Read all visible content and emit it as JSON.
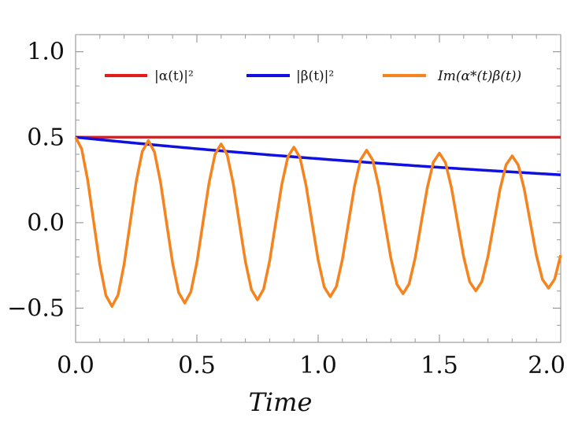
{
  "chart_data": {
    "type": "line",
    "title": "",
    "xlabel": "Time",
    "ylabel": "",
    "xlim": [
      0.0,
      2.0
    ],
    "ylim": [
      -0.7,
      1.1
    ],
    "xticks": [
      0.0,
      0.5,
      1.0,
      1.5,
      2.0
    ],
    "xtick_labels": [
      "0.0",
      "0.5",
      "1.0",
      "1.5",
      "2.0"
    ],
    "yticks": [
      -0.5,
      0.0,
      0.5,
      1.0
    ],
    "ytick_labels": [
      "−0.5",
      "0.0",
      "0.5",
      "1.0"
    ],
    "grid": false,
    "legend_position": "top",
    "series": [
      {
        "name": "|α(t)|²",
        "color": "#e41a1c",
        "function": "constant",
        "value": 0.5
      },
      {
        "name": "|β(t)|²",
        "color": "#1010e0",
        "function": "exponential_decay",
        "initial": 0.5,
        "value_at_end": 0.28
      },
      {
        "name": "Im(α*(t)β(t))",
        "color": "#f5841f",
        "function": "damped_cosine",
        "initial": 0.5,
        "period": 0.3,
        "amplitude_at_end": 0.38,
        "samples": 81
      }
    ]
  }
}
